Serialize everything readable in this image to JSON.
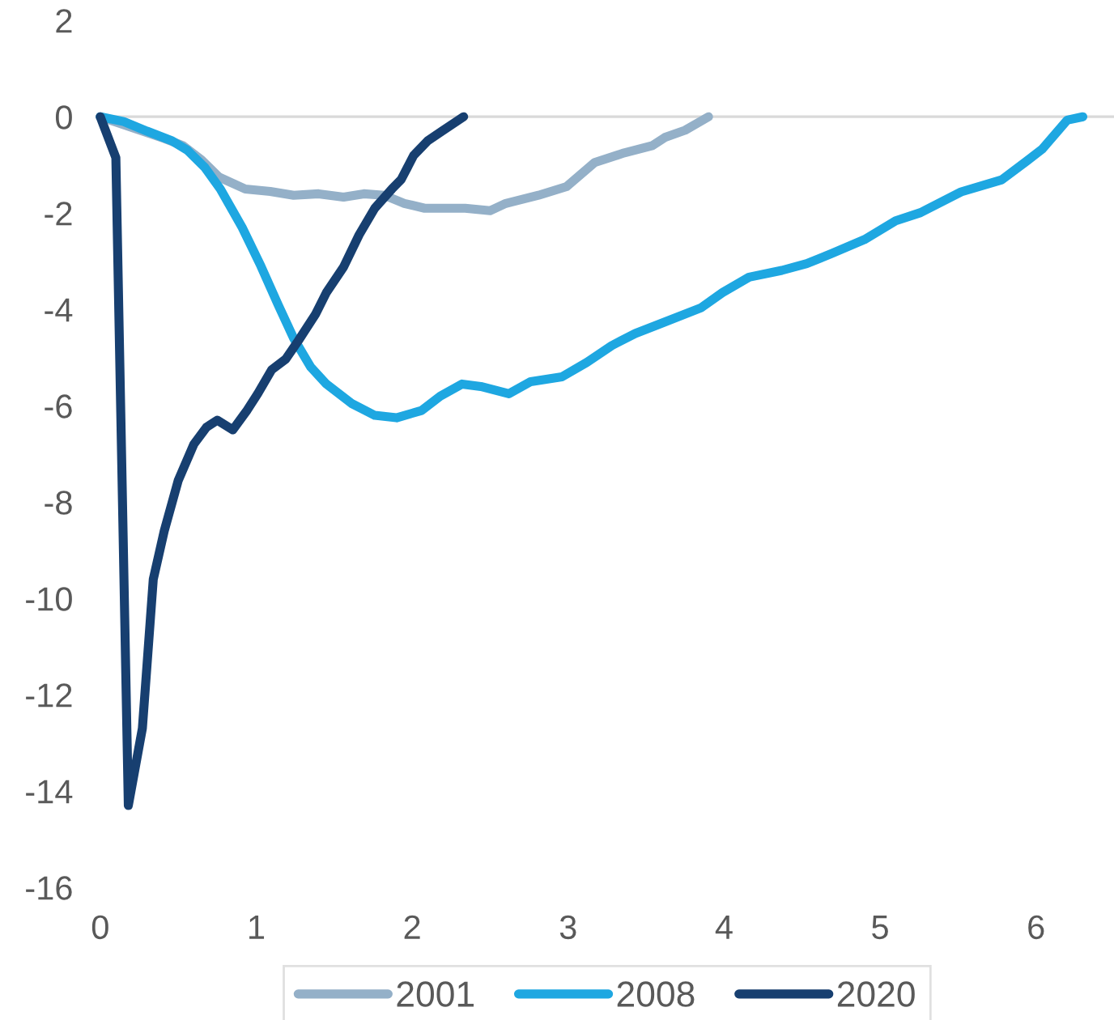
{
  "chart_data": {
    "type": "line",
    "xlim": [
      0,
      6.5
    ],
    "ylim": [
      -16,
      2
    ],
    "xticks": [
      0,
      1,
      2,
      3,
      4,
      5,
      6
    ],
    "yticks": [
      -16,
      -14,
      -12,
      -10,
      -8,
      -6,
      -4,
      -2,
      0,
      2
    ],
    "grid": false,
    "legend": "bottom",
    "marker": "none",
    "line_style": "solid",
    "ref_lines": [
      {
        "axis": "y",
        "value": 0,
        "color": "#d9d9d9"
      }
    ],
    "series": [
      {
        "name": "2001",
        "color": "#94b0c8",
        "x": [
          0,
          0.18,
          0.41,
          0.53,
          0.65,
          0.76,
          0.93,
          1.09,
          1.24,
          1.4,
          1.56,
          1.69,
          1.82,
          1.95,
          2.08,
          2.34,
          2.5,
          2.6,
          2.81,
          2.99,
          3.17,
          3.36,
          3.54,
          3.62,
          3.75,
          3.9
        ],
        "values": [
          0,
          -0.2,
          -0.45,
          -0.6,
          -0.9,
          -1.25,
          -1.5,
          -1.55,
          -1.63,
          -1.6,
          -1.67,
          -1.6,
          -1.63,
          -1.8,
          -1.9,
          -1.9,
          -1.95,
          -1.8,
          -1.63,
          -1.45,
          -0.95,
          -0.75,
          -0.6,
          -0.43,
          -0.28,
          0
        ]
      },
      {
        "name": "2008",
        "color": "#1ea7e1",
        "x": [
          0,
          0.15,
          0.3,
          0.46,
          0.56,
          0.67,
          0.77,
          0.91,
          1.03,
          1.14,
          1.24,
          1.35,
          1.45,
          1.61,
          1.76,
          1.9,
          2.06,
          2.18,
          2.32,
          2.44,
          2.62,
          2.76,
          2.96,
          3.12,
          3.28,
          3.43,
          3.59,
          3.85,
          3.99,
          4.16,
          4.37,
          4.53,
          4.69,
          4.9,
          5.1,
          5.26,
          5.52,
          5.78,
          5.94,
          6.04,
          6.2,
          6.3
        ],
        "values": [
          0,
          -0.1,
          -0.3,
          -0.5,
          -0.7,
          -1.05,
          -1.5,
          -2.3,
          -3.1,
          -3.9,
          -4.6,
          -5.2,
          -5.55,
          -5.95,
          -6.2,
          -6.25,
          -6.1,
          -5.8,
          -5.55,
          -5.6,
          -5.75,
          -5.5,
          -5.4,
          -5.1,
          -4.75,
          -4.5,
          -4.3,
          -3.97,
          -3.65,
          -3.33,
          -3.19,
          -3.05,
          -2.84,
          -2.55,
          -2.16,
          -1.99,
          -1.56,
          -1.31,
          -0.92,
          -0.67,
          -0.07,
          0
        ]
      },
      {
        "name": "2020",
        "color": "#173f70",
        "x": [
          0,
          0.1,
          0.18,
          0.27,
          0.34,
          0.41,
          0.5,
          0.6,
          0.68,
          0.75,
          0.85,
          0.94,
          1.01,
          1.1,
          1.19,
          1.27,
          1.38,
          1.45,
          1.56,
          1.66,
          1.76,
          1.87,
          1.93,
          2.01,
          2.1,
          2.19,
          2.33
        ],
        "values": [
          0,
          -0.85,
          -14.3,
          -12.7,
          -9.6,
          -8.6,
          -7.55,
          -6.8,
          -6.45,
          -6.3,
          -6.5,
          -6.1,
          -5.75,
          -5.25,
          -5.03,
          -4.65,
          -4.1,
          -3.65,
          -3.12,
          -2.45,
          -1.9,
          -1.5,
          -1.3,
          -0.8,
          -0.5,
          -0.3,
          0
        ]
      }
    ]
  }
}
